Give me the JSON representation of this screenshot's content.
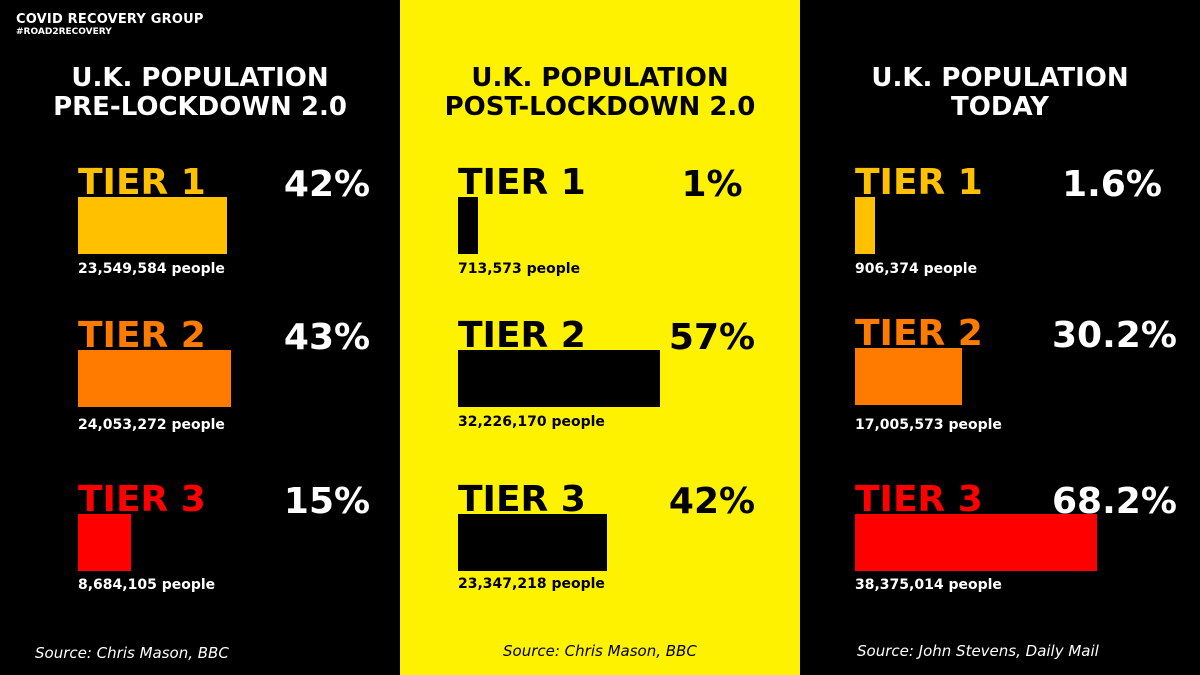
{
  "brand": {
    "name": "COVID RECOVERY GROUP",
    "hashtag": "#ROAD2RECOVERY"
  },
  "colors": {
    "tier1": "#ffc000",
    "tier2": "#ff7b00",
    "tier3": "#ff0000",
    "yellow_bg": "#fff200",
    "black": "#000000",
    "white": "#ffffff"
  },
  "chart_data": [
    {
      "type": "bar",
      "title_lines": [
        "U.K. POPULATION",
        "PRE-LOCKDOWN 2.0"
      ],
      "categories": [
        "TIER 1",
        "TIER 2",
        "TIER 3"
      ],
      "values": [
        42,
        43,
        15
      ],
      "value_labels": [
        "42%",
        "43%",
        "15%"
      ],
      "people": [
        "23,549,584 people",
        "24,053,272 people",
        "8,684,105 people"
      ],
      "source": "Source: Chris Mason, BBC"
    },
    {
      "type": "bar",
      "title_lines": [
        "U.K. POPULATION",
        "POST-LOCKDOWN 2.0"
      ],
      "categories": [
        "TIER 1",
        "TIER 2",
        "TIER 3"
      ],
      "values": [
        1,
        57,
        42
      ],
      "value_labels": [
        "1%",
        "57%",
        "42%"
      ],
      "people": [
        "713,573 people",
        "32,226,170 people",
        "23,347,218 people"
      ],
      "source": "Source: Chris Mason, BBC"
    },
    {
      "type": "bar",
      "title_lines": [
        "U.K. POPULATION",
        "TODAY"
      ],
      "categories": [
        "TIER 1",
        "TIER 2",
        "TIER 3"
      ],
      "values": [
        1.6,
        30.2,
        68.2
      ],
      "value_labels": [
        "1.6%",
        "30.2%",
        "68.2%"
      ],
      "people": [
        "906,374 people",
        "17,005,573 people",
        "38,375,014 people"
      ],
      "source": "Source: John Stevens, Daily Mail"
    }
  ]
}
